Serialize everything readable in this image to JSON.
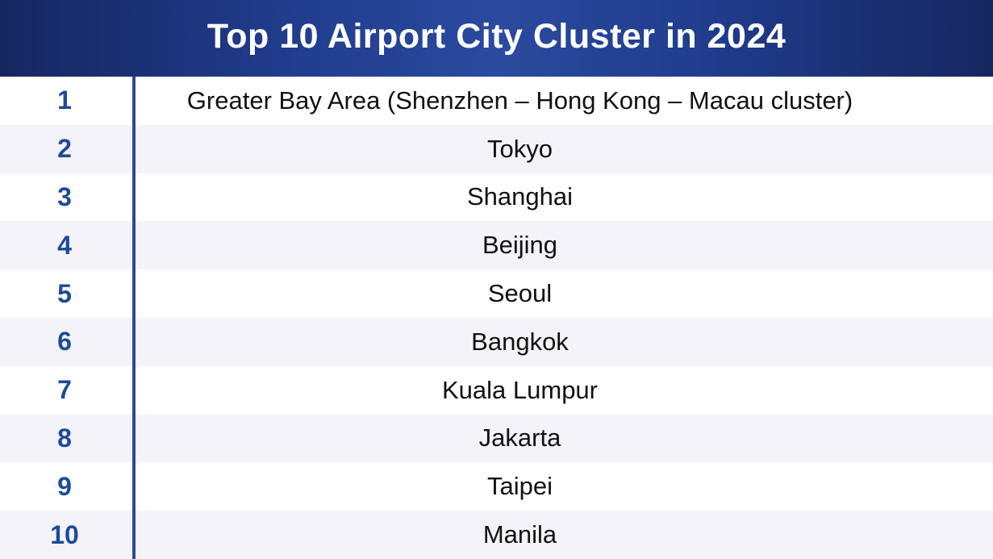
{
  "chart_data": {
    "type": "table",
    "title": "Top 10 Airport City Cluster in 2024",
    "rows": [
      {
        "rank": "1",
        "city": "Greater Bay Area (Shenzhen – Hong Kong – Macau cluster)"
      },
      {
        "rank": "2",
        "city": "Tokyo"
      },
      {
        "rank": "3",
        "city": "Shanghai"
      },
      {
        "rank": "4",
        "city": "Beijing"
      },
      {
        "rank": "5",
        "city": "Seoul"
      },
      {
        "rank": "6",
        "city": "Bangkok"
      },
      {
        "rank": "7",
        "city": "Kuala Lumpur"
      },
      {
        "rank": "8",
        "city": "Jakarta"
      },
      {
        "rank": "9",
        "city": "Taipei"
      },
      {
        "rank": "10",
        "city": "Manila"
      }
    ]
  },
  "colors": {
    "header_dark": "#162660",
    "header_mid": "#2a4a9e",
    "rank_text": "#1e4a9a",
    "divider": "#2a4c9c",
    "stripe": "#f3f3f9"
  }
}
